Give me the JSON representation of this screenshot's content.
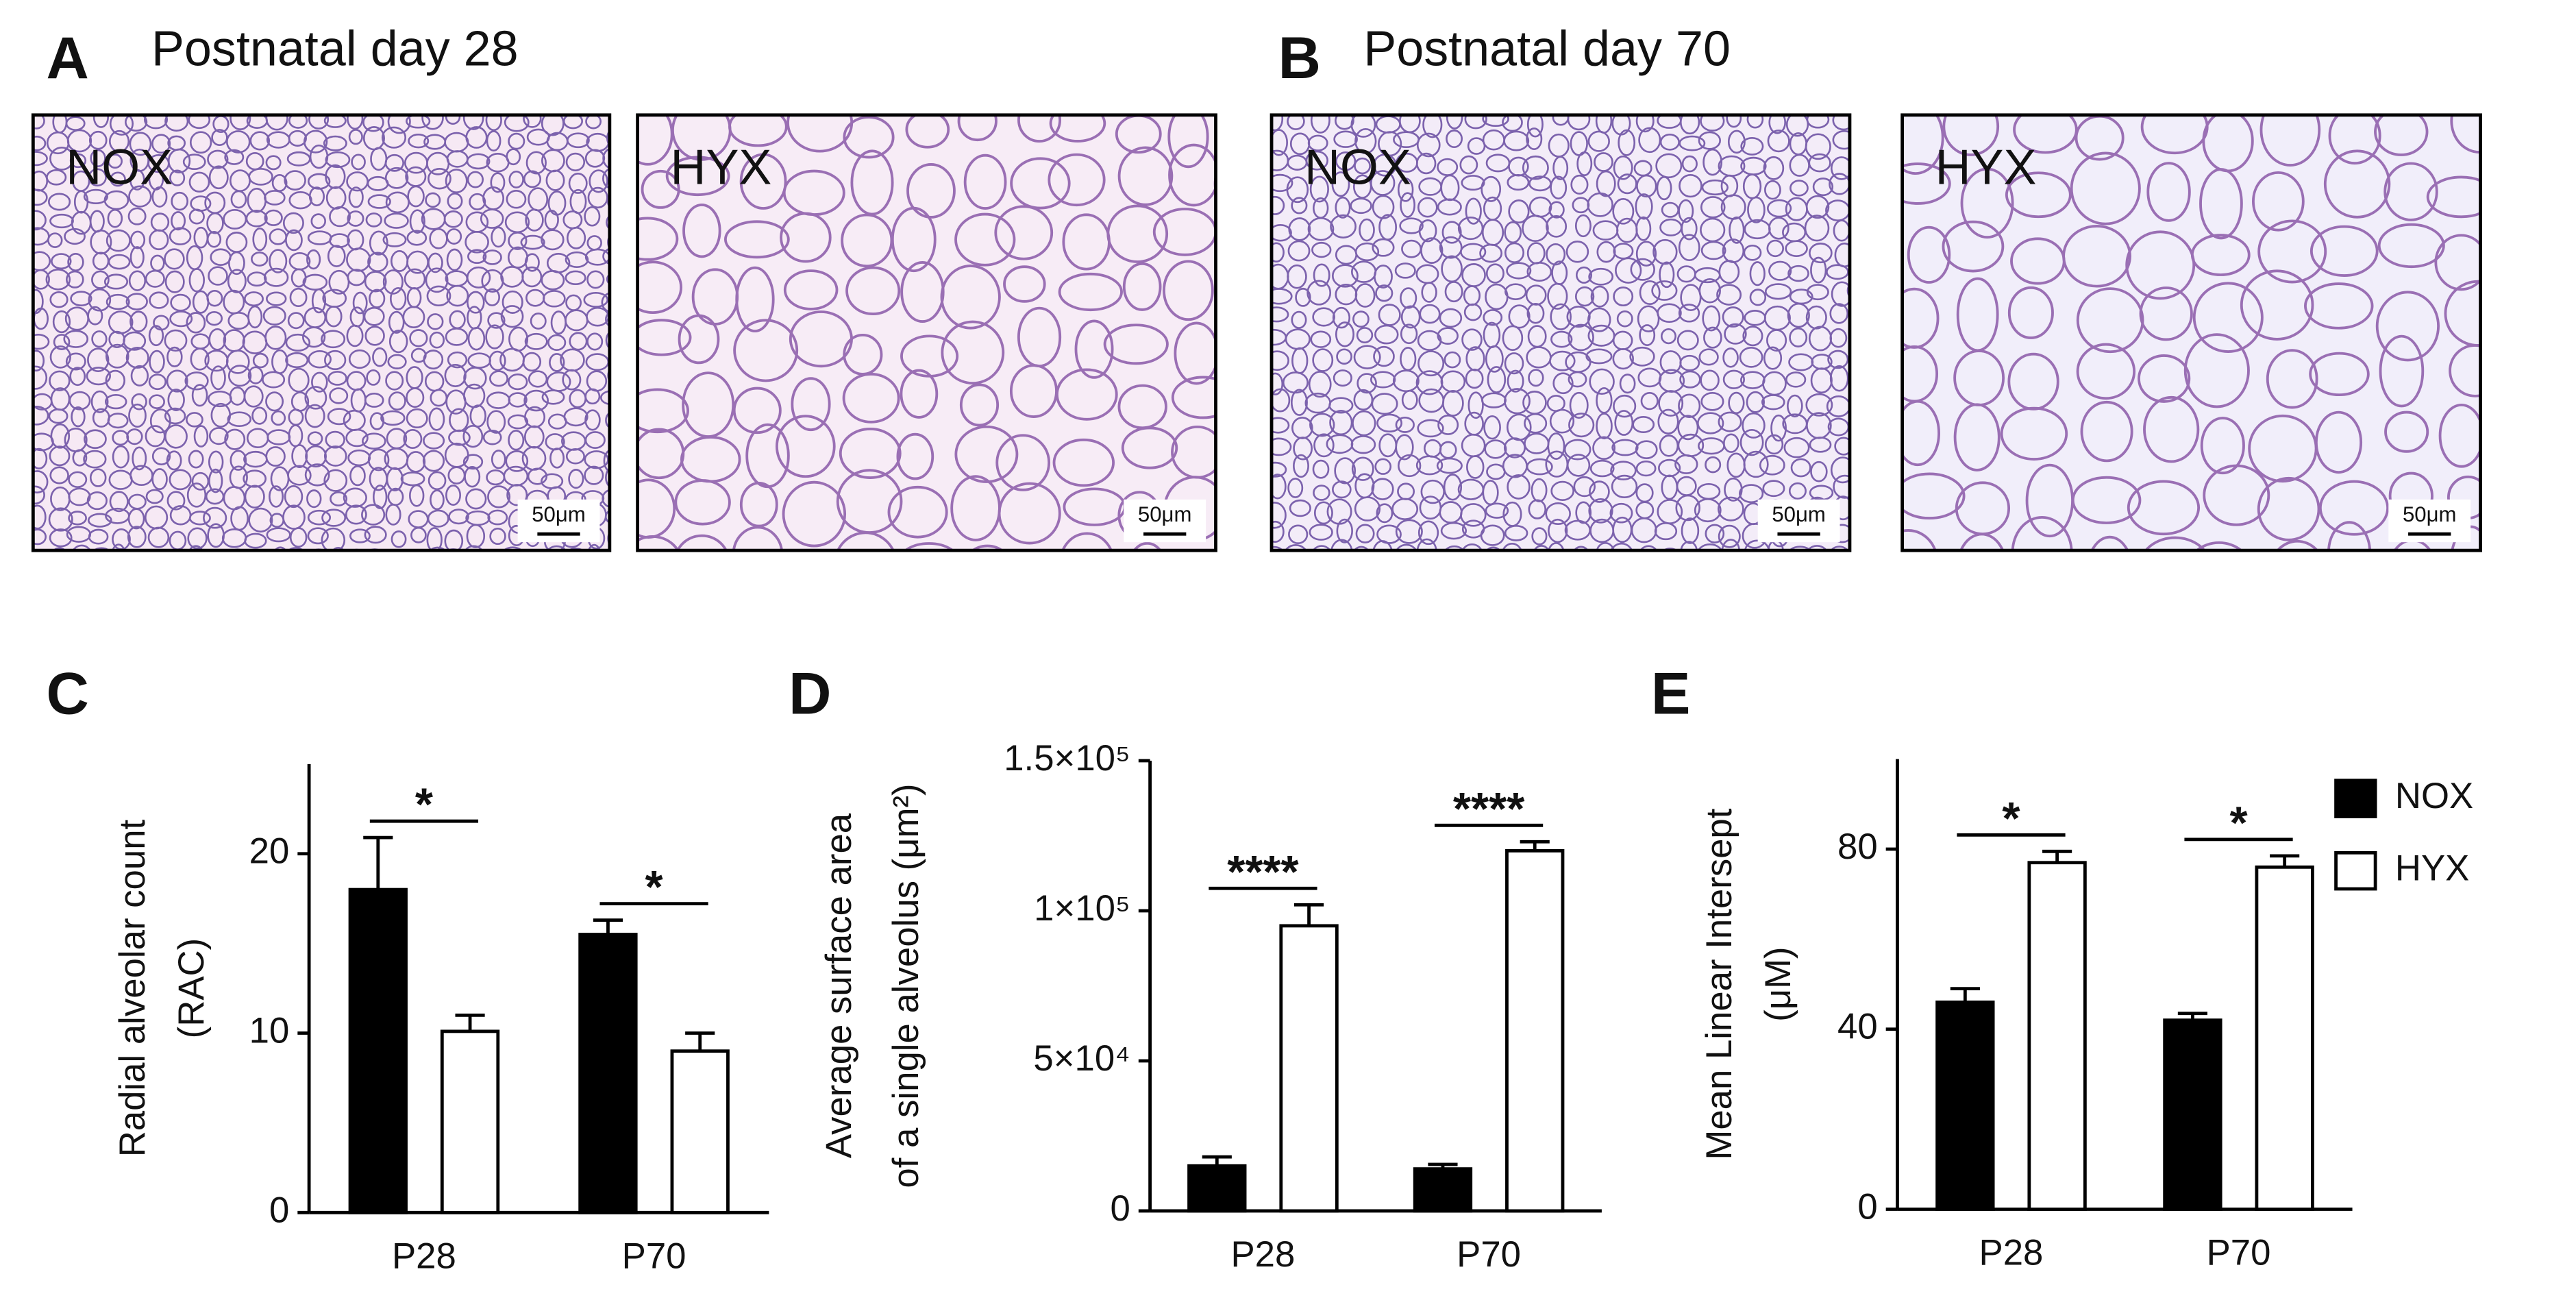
{
  "figure": {
    "panels": [
      {
        "letter": "A",
        "title": "Postnatal day 28",
        "images": [
          {
            "label": "NOX",
            "scale_bar": "50μm"
          },
          {
            "label": "HYX",
            "scale_bar": "50μm"
          }
        ]
      },
      {
        "letter": "B",
        "title": "Postnatal day 70",
        "images": [
          {
            "label": "NOX",
            "scale_bar": "50μm"
          },
          {
            "label": "HYX",
            "scale_bar": "50μm"
          }
        ]
      }
    ]
  },
  "chart_data": [
    {
      "type": "bar",
      "panel": "C",
      "ylabel": [
        "Radial alveolar count",
        "(RAC)"
      ],
      "categories": [
        "P28",
        "P70"
      ],
      "series": [
        {
          "color": "#000000",
          "values": [
            18,
            15.5
          ],
          "errors": [
            2.9,
            0.8
          ]
        },
        {
          "color": "#ffffff",
          "values": [
            10.1,
            9.0
          ],
          "errors": [
            0.9,
            1.0
          ]
        }
      ],
      "annotations": [
        "*",
        "*"
      ],
      "ylim": [
        0,
        25
      ],
      "yticks": [
        0,
        10,
        20
      ]
    },
    {
      "type": "bar",
      "panel": "D",
      "ylabel": [
        "Average surface area",
        "of a single alveolus (μm²)"
      ],
      "categories": [
        "P28",
        "P70"
      ],
      "series": [
        {
          "color": "#000000",
          "values": [
            15000,
            14000
          ],
          "errors": [
            3000,
            1500
          ]
        },
        {
          "color": "#ffffff",
          "values": [
            95000,
            120000
          ],
          "errors": [
            7000,
            3000
          ]
        }
      ],
      "annotations": [
        "****",
        "****"
      ],
      "ylim": [
        0,
        150000
      ],
      "yticks": [
        0,
        {
          "value": 50000,
          "label": "5×10⁴"
        },
        {
          "value": 100000,
          "label": "1×10⁵"
        },
        {
          "value": 150000,
          "label": "1.5×10⁵"
        }
      ]
    },
    {
      "type": "bar",
      "panel": "E",
      "ylabel": [
        "Mean Linear Intersept",
        "(μM)"
      ],
      "categories": [
        "P28",
        "P70"
      ],
      "series": [
        {
          "name": "NOX",
          "color": "#000000",
          "values": [
            46,
            42
          ],
          "errors": [
            3,
            1.5
          ]
        },
        {
          "name": "HYX",
          "color": "#ffffff",
          "values": [
            77,
            76
          ],
          "errors": [
            2.5,
            2.5
          ]
        }
      ],
      "annotations": [
        "*",
        "*"
      ],
      "ylim": [
        0,
        100
      ],
      "yticks": [
        0,
        40,
        80
      ],
      "legend": "right"
    }
  ]
}
